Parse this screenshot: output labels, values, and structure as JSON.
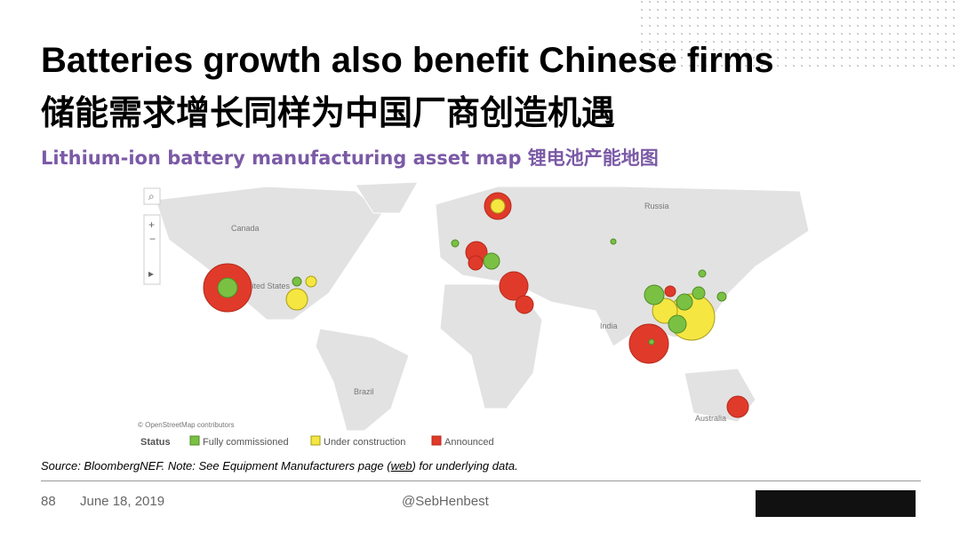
{
  "header": {
    "title": "Batteries growth also benefit Chinese firms",
    "subtitle": "储能需求增长同样为中国厂商创造机遇"
  },
  "map": {
    "heading": "Lithium-ion battery manufacturing asset map 锂电池产能地图",
    "labels": [
      "Canada",
      "Russia",
      "United States",
      "India",
      "Brazil",
      "Australia"
    ],
    "attribution": "© OpenStreetMap contributors"
  },
  "legend": {
    "title": "Status",
    "items": [
      "Fully commissioned",
      "Under construction",
      "Announced"
    ]
  },
  "source": {
    "parts": [
      "Source: BloombergNEF. Note: See Equipment Manufacturers page (",
      "web",
      ") for underlying data."
    ]
  },
  "footer": {
    "page": "88",
    "date": "June 18, 2019",
    "handle": "@SebHenbest"
  }
}
